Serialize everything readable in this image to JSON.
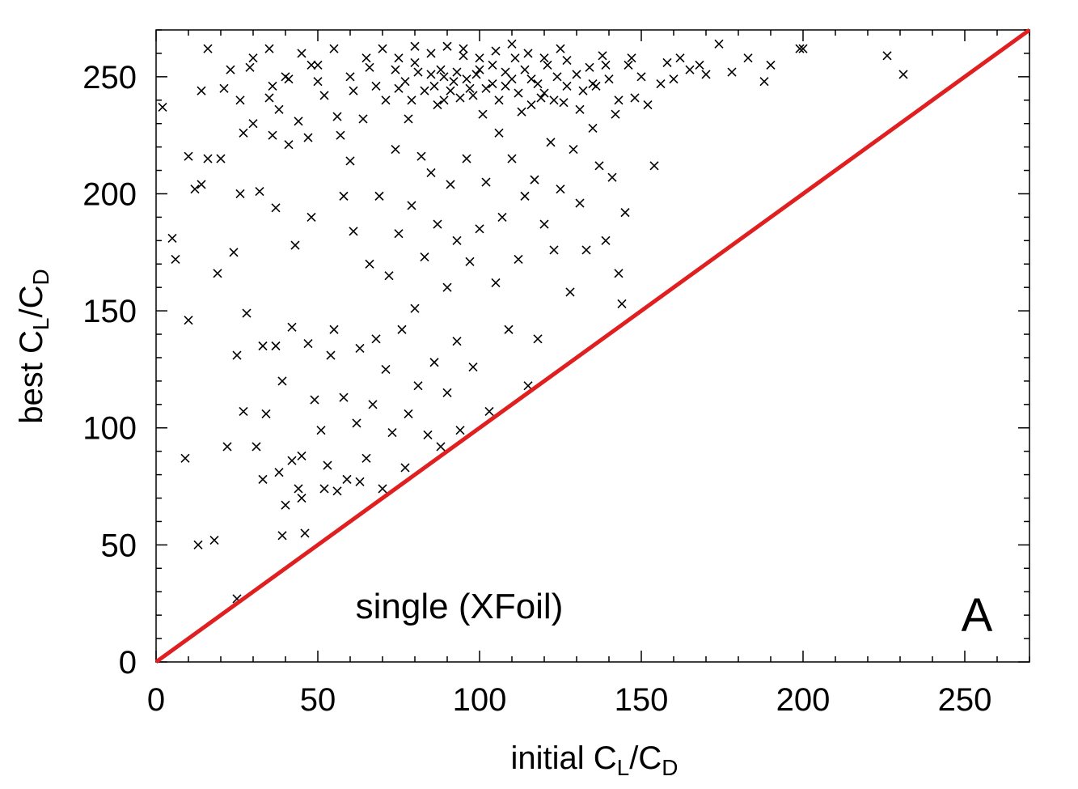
{
  "chart_data": {
    "type": "scatter",
    "title": "",
    "xlabel": {
      "main": "initial C",
      "sub1": "L",
      "mid": "/C",
      "sub2": "D"
    },
    "ylabel": {
      "main": "best C",
      "sub1": "L",
      "mid": "/C",
      "sub2": "D"
    },
    "xlim": [
      0,
      270
    ],
    "ylim": [
      0,
      270
    ],
    "xticks": [
      0,
      50,
      100,
      150,
      200,
      250
    ],
    "yticks": [
      0,
      50,
      100,
      150,
      200,
      250
    ],
    "xtick_labels": [
      "0",
      "50",
      "100",
      "150",
      "200",
      "250"
    ],
    "ytick_labels": [
      "0",
      "50",
      "100",
      "150",
      "200",
      "250"
    ],
    "minor_tick_step": 10,
    "grid": false,
    "annotation": "single (XFoil)",
    "panel_label": "A",
    "marker": "x",
    "marker_color": "#000000",
    "reference_line": {
      "from": [
        0,
        0
      ],
      "to": [
        270,
        270
      ],
      "color": "#e02020"
    },
    "series": [
      {
        "points": [
          [
            2,
            237
          ],
          [
            5,
            181
          ],
          [
            6,
            172
          ],
          [
            9,
            87
          ],
          [
            10,
            146
          ],
          [
            10,
            216
          ],
          [
            12,
            202
          ],
          [
            13,
            50
          ],
          [
            14,
            244
          ],
          [
            14,
            204
          ],
          [
            16,
            215
          ],
          [
            16,
            262
          ],
          [
            18,
            52
          ],
          [
            19,
            166
          ],
          [
            20,
            215
          ],
          [
            21,
            245
          ],
          [
            22,
            92
          ],
          [
            23,
            253
          ],
          [
            24,
            175
          ],
          [
            25,
            131
          ],
          [
            25,
            27
          ],
          [
            26,
            240
          ],
          [
            26,
            200
          ],
          [
            27,
            226
          ],
          [
            27,
            107
          ],
          [
            28,
            149
          ],
          [
            29,
            254
          ],
          [
            30,
            230
          ],
          [
            31,
            92
          ],
          [
            32,
            201
          ],
          [
            33,
            135
          ],
          [
            33,
            78
          ],
          [
            34,
            106
          ],
          [
            35,
            241
          ],
          [
            36,
            225
          ],
          [
            37,
            194
          ],
          [
            37,
            135
          ],
          [
            38,
            81
          ],
          [
            39,
            120
          ],
          [
            39,
            54
          ],
          [
            40,
            67
          ],
          [
            41,
            249
          ],
          [
            41,
            221
          ],
          [
            42,
            143
          ],
          [
            42,
            86
          ],
          [
            43,
            178
          ],
          [
            44,
            74
          ],
          [
            45,
            70
          ],
          [
            45,
            88
          ],
          [
            46,
            55
          ],
          [
            47,
            136
          ],
          [
            47,
            224
          ],
          [
            48,
            190
          ],
          [
            49,
            112
          ],
          [
            50,
            248
          ],
          [
            51,
            99
          ],
          [
            52,
            74
          ],
          [
            53,
            84
          ],
          [
            54,
            131
          ],
          [
            55,
            142
          ],
          [
            56,
            73
          ],
          [
            57,
            225
          ],
          [
            58,
            199
          ],
          [
            58,
            113
          ],
          [
            59,
            78
          ],
          [
            60,
            214
          ],
          [
            61,
            184
          ],
          [
            62,
            102
          ],
          [
            63,
            134
          ],
          [
            63,
            77
          ],
          [
            64,
            232
          ],
          [
            65,
            87
          ],
          [
            66,
            170
          ],
          [
            67,
            110
          ],
          [
            68,
            138
          ],
          [
            68,
            246
          ],
          [
            69,
            199
          ],
          [
            70,
            74
          ],
          [
            71,
            125
          ],
          [
            72,
            165
          ],
          [
            73,
            98
          ],
          [
            74,
            219
          ],
          [
            75,
            183
          ],
          [
            75,
            245
          ],
          [
            76,
            142
          ],
          [
            77,
            83
          ],
          [
            78,
            106
          ],
          [
            78,
            232
          ],
          [
            79,
            195
          ],
          [
            80,
            151
          ],
          [
            80,
            256
          ],
          [
            81,
            118
          ],
          [
            82,
            216
          ],
          [
            83,
            173
          ],
          [
            84,
            97
          ],
          [
            85,
            251
          ],
          [
            85,
            209
          ],
          [
            86,
            128
          ],
          [
            87,
            187
          ],
          [
            88,
            92
          ],
          [
            88,
            253
          ],
          [
            89,
            240
          ],
          [
            90,
            160
          ],
          [
            90,
            115
          ],
          [
            91,
            204
          ],
          [
            92,
            248
          ],
          [
            93,
            180
          ],
          [
            93,
            137
          ],
          [
            94,
            99
          ],
          [
            95,
            259
          ],
          [
            96,
            215
          ],
          [
            97,
            171
          ],
          [
            97,
            245
          ],
          [
            98,
            126
          ],
          [
            99,
            251
          ],
          [
            100,
            185
          ],
          [
            101,
            234
          ],
          [
            102,
            205
          ],
          [
            103,
            107
          ],
          [
            104,
            247
          ],
          [
            105,
            162
          ],
          [
            106,
            226
          ],
          [
            107,
            190
          ],
          [
            108,
            252
          ],
          [
            109,
            142
          ],
          [
            110,
            215
          ],
          [
            111,
            258
          ],
          [
            112,
            172
          ],
          [
            113,
            235
          ],
          [
            114,
            199
          ],
          [
            115,
            118
          ],
          [
            116,
            249
          ],
          [
            117,
            206
          ],
          [
            118,
            138
          ],
          [
            119,
            241
          ],
          [
            120,
            187
          ],
          [
            121,
            255
          ],
          [
            122,
            222
          ],
          [
            123,
            176
          ],
          [
            124,
            250
          ],
          [
            125,
            202
          ],
          [
            126,
            239
          ],
          [
            127,
            257
          ],
          [
            128,
            158
          ],
          [
            129,
            219
          ],
          [
            130,
            251
          ],
          [
            131,
            196
          ],
          [
            132,
            244
          ],
          [
            133,
            176
          ],
          [
            134,
            254
          ],
          [
            135,
            228
          ],
          [
            136,
            246
          ],
          [
            137,
            212
          ],
          [
            138,
            259
          ],
          [
            139,
            180
          ],
          [
            140,
            249
          ],
          [
            141,
            207
          ],
          [
            142,
            234
          ],
          [
            143,
            166
          ],
          [
            144,
            153
          ],
          [
            145,
            192
          ],
          [
            146,
            255
          ],
          [
            148,
            241
          ],
          [
            150,
            250
          ],
          [
            152,
            238
          ],
          [
            154,
            212
          ],
          [
            156,
            247
          ],
          [
            158,
            256
          ],
          [
            160,
            249
          ],
          [
            162,
            258
          ],
          [
            165,
            253
          ],
          [
            168,
            255
          ],
          [
            170,
            251
          ],
          [
            174,
            264
          ],
          [
            178,
            252
          ],
          [
            183,
            258
          ],
          [
            188,
            248
          ],
          [
            190,
            255
          ],
          [
            199,
            262
          ],
          [
            200,
            262
          ],
          [
            226,
            259
          ],
          [
            231,
            251
          ],
          [
            30,
            258
          ],
          [
            35,
            262
          ],
          [
            40,
            250
          ],
          [
            45,
            260
          ],
          [
            50,
            255
          ],
          [
            55,
            262
          ],
          [
            60,
            250
          ],
          [
            65,
            258
          ],
          [
            70,
            262
          ],
          [
            75,
            258
          ],
          [
            80,
            263
          ],
          [
            85,
            260
          ],
          [
            90,
            263
          ],
          [
            95,
            262
          ],
          [
            100,
            258
          ],
          [
            105,
            261
          ],
          [
            110,
            264
          ],
          [
            115,
            260
          ],
          [
            120,
            258
          ],
          [
            125,
            262
          ],
          [
            36,
            246
          ],
          [
            38,
            236
          ],
          [
            44,
            231
          ],
          [
            48,
            255
          ],
          [
            52,
            242
          ],
          [
            56,
            233
          ],
          [
            61,
            244
          ],
          [
            66,
            254
          ],
          [
            71,
            240
          ],
          [
            74,
            253
          ],
          [
            77,
            248
          ],
          [
            79,
            240
          ],
          [
            81,
            252
          ],
          [
            83,
            244
          ],
          [
            86,
            246
          ],
          [
            87,
            238
          ],
          [
            89,
            250
          ],
          [
            91,
            244
          ],
          [
            93,
            252
          ],
          [
            94,
            241
          ],
          [
            96,
            249
          ],
          [
            98,
            242
          ],
          [
            100,
            253
          ],
          [
            102,
            245
          ],
          [
            104,
            255
          ],
          [
            106,
            240
          ],
          [
            108,
            246
          ],
          [
            110,
            249
          ],
          [
            112,
            243
          ],
          [
            114,
            253
          ],
          [
            116,
            238
          ],
          [
            118,
            247
          ],
          [
            120,
            243
          ],
          [
            123,
            240
          ],
          [
            127,
            246
          ],
          [
            131,
            236
          ],
          [
            135,
            247
          ],
          [
            139,
            255
          ],
          [
            143,
            240
          ],
          [
            147,
            258
          ]
        ]
      }
    ]
  }
}
